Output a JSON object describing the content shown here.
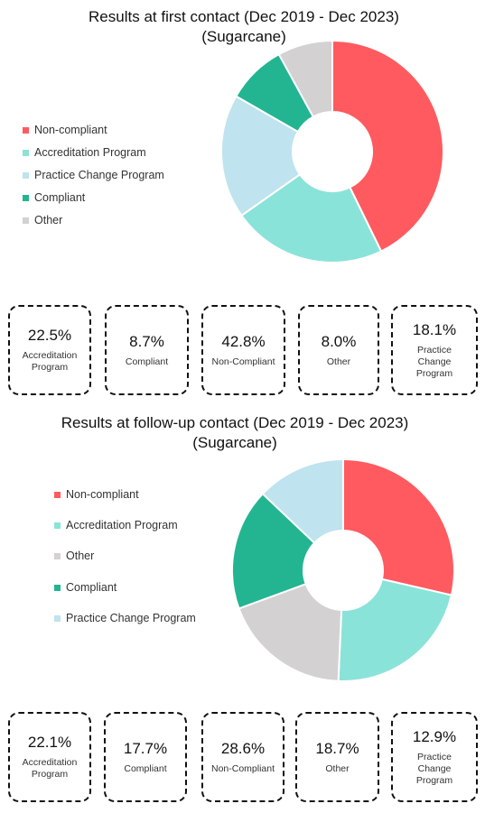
{
  "charts": [
    {
      "title_line1": "Results at first contact (Dec 2019 - Dec 2023)",
      "title_line2": "(Sugarcane)",
      "legend": [
        "Non-compliant",
        "Accreditation Program",
        "Practice Change Program",
        "Compliant",
        "Other"
      ],
      "cards": [
        {
          "pct": "22.5%",
          "label": "Accreditation Program"
        },
        {
          "pct": "8.7%",
          "label": "Compliant"
        },
        {
          "pct": "42.8%",
          "label": "Non-Compliant"
        },
        {
          "pct": "8.0%",
          "label": "Other"
        },
        {
          "pct": "18.1%",
          "label": "Practice Change Program"
        }
      ]
    },
    {
      "title_line1": "Results at follow-up contact (Dec 2019 - Dec 2023)",
      "title_line2": "(Sugarcane)",
      "legend": [
        "Non-compliant",
        "Accreditation Program",
        "Other",
        "Compliant",
        "Practice Change Program"
      ],
      "cards": [
        {
          "pct": "22.1%",
          "label": "Accreditation Program"
        },
        {
          "pct": "17.7%",
          "label": "Compliant"
        },
        {
          "pct": "28.6%",
          "label": "Non-Compliant"
        },
        {
          "pct": "18.7%",
          "label": "Other"
        },
        {
          "pct": "12.9%",
          "label": "Practice Change Program"
        }
      ]
    }
  ],
  "colors": {
    "Non-compliant": "#ff5a5f",
    "Accreditation Program": "#8ae3d8",
    "Practice Change Program": "#bfe3ef",
    "Compliant": "#23b591",
    "Other": "#d3d1d2"
  },
  "chart_data": [
    {
      "type": "pie",
      "title": "Results at first contact (Dec 2019 - Dec 2023) (Sugarcane)",
      "slices": [
        {
          "name": "Non-compliant",
          "value": 42.8
        },
        {
          "name": "Accreditation Program",
          "value": 22.5
        },
        {
          "name": "Practice Change Program",
          "value": 18.1
        },
        {
          "name": "Compliant",
          "value": 8.7
        },
        {
          "name": "Other",
          "value": 8.0
        }
      ]
    },
    {
      "type": "pie",
      "title": "Results at follow-up contact (Dec 2019 - Dec 2023) (Sugarcane)",
      "slices": [
        {
          "name": "Non-compliant",
          "value": 28.6
        },
        {
          "name": "Accreditation Program",
          "value": 22.1
        },
        {
          "name": "Other",
          "value": 18.7
        },
        {
          "name": "Compliant",
          "value": 17.7
        },
        {
          "name": "Practice Change Program",
          "value": 12.9
        }
      ]
    }
  ]
}
